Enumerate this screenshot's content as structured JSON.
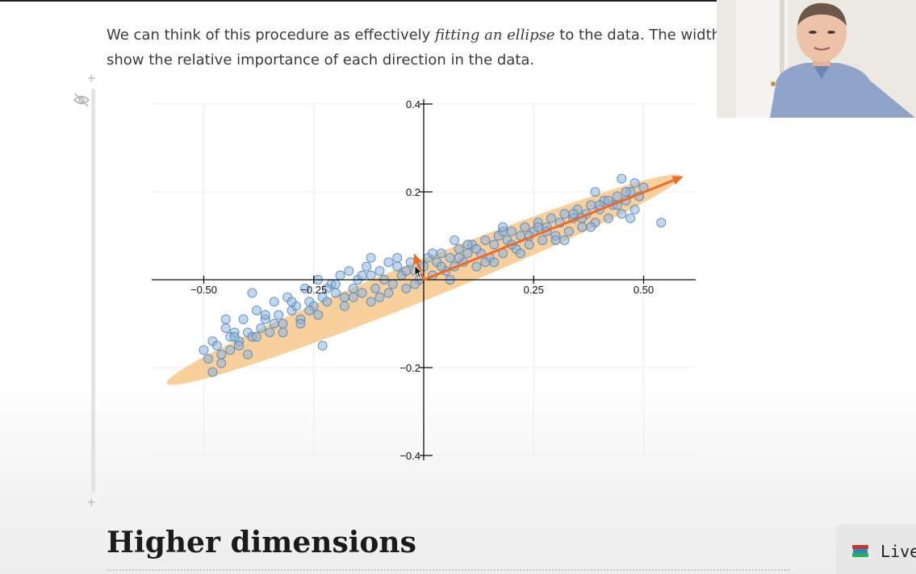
{
  "text": {
    "line1_before": "We can think of this procedure as effectively ",
    "line1_italic": "fitting an ellipse",
    "line1_after": " to the data. The widths of the e",
    "line2": "show the relative importance of each direction in the data."
  },
  "section": {
    "heading": "Higher dimensions"
  },
  "cell": {
    "plus_top": "+",
    "plus_bottom": "+"
  },
  "live_button": {
    "label": "Live"
  },
  "icons": {
    "eye": "eye-slash-icon",
    "books": "books-icon",
    "cursor": "cursor-icon"
  },
  "colors": {
    "point_fill": "#8fb5de",
    "point_stroke": "#4a7fb5",
    "ellipse_fill": "#f6c889",
    "arrow": "#ef6b2a",
    "axis": "#111111",
    "grid": "#ececec"
  },
  "chart_data": {
    "type": "scatter",
    "x_ticks": [
      -0.5,
      -0.25,
      0.25,
      0.5
    ],
    "x_tick_labels": [
      "−0.50",
      "−0.25",
      "0.25",
      "0.50"
    ],
    "y_ticks": [
      0.4,
      0.2,
      -0.2,
      -0.4
    ],
    "y_tick_labels": [
      "0.4",
      "0.2",
      "−0.2",
      "−0.4"
    ],
    "xlim": [
      -0.62,
      0.62
    ],
    "ylim": [
      -0.4,
      0.4
    ],
    "grid": true,
    "series": [
      {
        "points": {
          "x": [
            -0.5,
            -0.49,
            -0.48,
            -0.47,
            -0.46,
            -0.45,
            -0.44,
            -0.43,
            -0.42,
            -0.41,
            -0.4,
            -0.39,
            -0.38,
            -0.37,
            -0.36,
            -0.35,
            -0.34,
            -0.33,
            -0.32,
            -0.31,
            -0.3,
            -0.29,
            -0.28,
            -0.27,
            -0.26,
            -0.25,
            -0.24,
            -0.23,
            -0.22,
            -0.21,
            -0.2,
            -0.19,
            -0.18,
            -0.17,
            -0.16,
            -0.15,
            -0.14,
            -0.13,
            -0.12,
            -0.11,
            -0.1,
            -0.09,
            -0.08,
            -0.07,
            -0.06,
            -0.05,
            -0.04,
            -0.03,
            -0.02,
            -0.01,
            0.0,
            0.01,
            0.02,
            0.03,
            0.04,
            0.05,
            0.06,
            0.07,
            0.08,
            0.09,
            0.1,
            0.11,
            0.12,
            0.13,
            0.14,
            0.15,
            0.16,
            0.17,
            0.18,
            0.19,
            0.2,
            0.21,
            0.22,
            0.23,
            0.24,
            0.25,
            0.26,
            0.27,
            0.28,
            0.29,
            0.3,
            0.31,
            0.32,
            0.33,
            0.34,
            0.35,
            0.36,
            0.37,
            0.38,
            0.39,
            0.4,
            0.41,
            0.42,
            0.43,
            0.44,
            0.45,
            0.46,
            0.47,
            0.48,
            0.49,
            0.5,
            -0.46,
            -0.42,
            -0.38,
            -0.34,
            -0.3,
            -0.26,
            -0.22,
            -0.18,
            -0.14,
            -0.1,
            -0.06,
            -0.02,
            0.02,
            0.06,
            0.1,
            0.14,
            0.18,
            0.22,
            0.26,
            0.3,
            0.34,
            0.38,
            0.42,
            0.46,
            -0.44,
            -0.36,
            -0.28,
            -0.2,
            -0.12,
            -0.04,
            0.04,
            0.12,
            0.2,
            0.28,
            0.36,
            0.44,
            -0.48,
            -0.4,
            -0.32,
            -0.24,
            -0.16,
            -0.08,
            0.08,
            0.16,
            0.24,
            0.32,
            0.4,
            0.48,
            -0.23,
            0.18,
            0.39,
            0.54,
            -0.39,
            -0.43,
            0.45,
            0.47,
            -0.45,
            0.07,
            -0.12
          ],
          "y": [
            -0.16,
            -0.18,
            -0.14,
            -0.15,
            -0.17,
            -0.11,
            -0.16,
            -0.12,
            -0.14,
            -0.09,
            -0.12,
            -0.13,
            -0.07,
            -0.11,
            -0.09,
            -0.12,
            -0.05,
            -0.08,
            -0.1,
            -0.04,
            -0.07,
            -0.06,
            -0.09,
            -0.02,
            -0.05,
            -0.06,
            0.0,
            -0.04,
            -0.05,
            -0.01,
            -0.03,
            0.01,
            -0.04,
            0.02,
            -0.02,
            0.0,
            -0.03,
            0.03,
            0.01,
            -0.02,
            0.02,
            0.0,
            0.04,
            -0.01,
            0.03,
            0.01,
            -0.02,
            0.04,
            0.02,
            0.0,
            0.03,
            0.05,
            0.01,
            0.04,
            0.06,
            0.02,
            0.05,
            0.03,
            0.07,
            0.04,
            0.06,
            0.08,
            0.03,
            0.06,
            0.09,
            0.05,
            0.08,
            0.1,
            0.06,
            0.09,
            0.11,
            0.07,
            0.1,
            0.12,
            0.08,
            0.11,
            0.13,
            0.09,
            0.12,
            0.14,
            0.1,
            0.13,
            0.15,
            0.11,
            0.14,
            0.16,
            0.12,
            0.15,
            0.17,
            0.13,
            0.16,
            0.18,
            0.14,
            0.17,
            0.19,
            0.15,
            0.18,
            0.2,
            0.16,
            0.19,
            0.21,
            -0.19,
            -0.15,
            -0.13,
            -0.1,
            -0.05,
            -0.07,
            -0.02,
            -0.06,
            0.01,
            -0.04,
            0.05,
            -0.01,
            0.06,
            0.0,
            0.08,
            0.04,
            0.11,
            0.06,
            0.12,
            0.09,
            0.15,
            0.12,
            0.18,
            0.2,
            -0.13,
            -0.08,
            -0.1,
            -0.01,
            -0.05,
            0.02,
            0.03,
            0.07,
            0.08,
            0.11,
            0.14,
            0.17,
            -0.21,
            -0.17,
            -0.12,
            -0.08,
            -0.04,
            -0.03,
            0.05,
            0.04,
            0.1,
            0.09,
            0.17,
            0.22,
            -0.15,
            0.12,
            0.2,
            0.13,
            -0.03,
            -0.13,
            0.23,
            0.14,
            -0.09,
            0.09,
            0.05
          ]
        }
      }
    ],
    "ellipse": {
      "center": [
        0,
        0
      ],
      "semi_major": 0.63,
      "semi_minor": 0.045,
      "angle_deg": 22
    },
    "arrows": [
      {
        "from": [
          0,
          0
        ],
        "to": [
          0.59,
          0.235
        ]
      },
      {
        "from": [
          0,
          0
        ],
        "to": [
          -0.022,
          0.06
        ]
      }
    ]
  }
}
